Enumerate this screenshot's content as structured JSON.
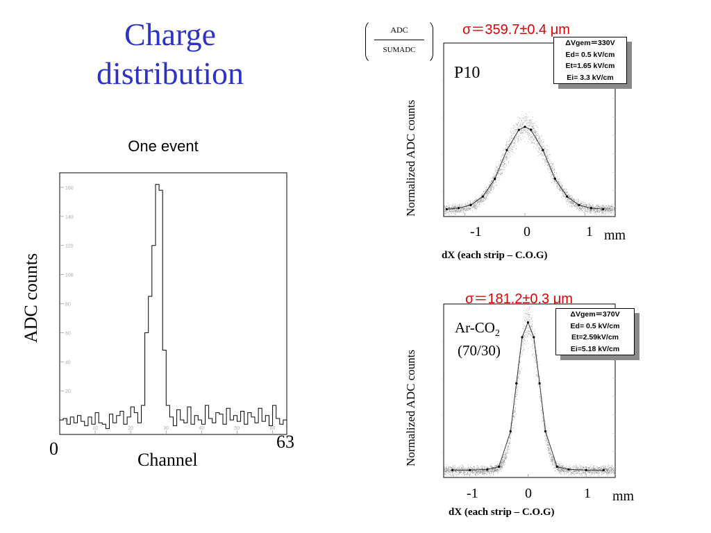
{
  "slide": {
    "title_line1": "Charge",
    "title_line2": "distribution",
    "subtitle": "One event"
  },
  "left_plot": {
    "ylabel": "ADC counts",
    "xlabel": "Channel",
    "x_start": "0",
    "x_end": "63"
  },
  "ratio": {
    "numerator": "ADC",
    "denominator": "SUMADC"
  },
  "top_plot": {
    "sigma": "σ＝359.7±0.4 μm",
    "gas": "P10",
    "ylabel": "Normalized ADC counts",
    "xlabel": "dX (each strip – C.O.G)",
    "unit": "mm",
    "info": [
      "ΔVgem＝330V",
      "Ed= 0.5 kV/cm",
      "Et=1.65 kV/cm",
      "Ei= 3.3 kV/cm"
    ]
  },
  "bottom_plot": {
    "sigma": "σ＝181.2±0.3 μm",
    "gas_main": "Ar-CO",
    "gas_sub": "2",
    "gas_mix": "(70/30)",
    "ylabel": "Normalized ADC counts",
    "xlabel": "dX (each strip – C.O.G)",
    "unit": "mm",
    "info": [
      "ΔVgem＝370V",
      "Ed= 0.5 kV/cm",
      "Et=2.59kV/cm",
      "Ei=5.18 kV/cm"
    ]
  },
  "chart_data": [
    {
      "type": "histogram",
      "title": "One event",
      "xlabel": "Channel",
      "ylabel": "ADC counts",
      "xlim": [
        0,
        64
      ],
      "ylim": [
        -10,
        170
      ],
      "x_ticks": [
        10,
        20,
        30,
        40,
        50,
        60
      ],
      "y_ticks": [
        0,
        20,
        40,
        60,
        80,
        100,
        120,
        140,
        160
      ],
      "x_end_labels": [
        "0",
        "63"
      ],
      "values": [
        0,
        1,
        -3,
        2,
        -2,
        3,
        -1,
        -4,
        2,
        -3,
        5,
        -2,
        -3,
        -6,
        4,
        -2,
        3,
        6,
        -3,
        2,
        9,
        5,
        -2,
        10,
        60,
        85,
        120,
        162,
        158,
        48,
        10,
        2,
        -4,
        7,
        0,
        -2,
        9,
        -3,
        3,
        0,
        -3,
        10,
        1,
        -2,
        5,
        4,
        -3,
        8,
        0,
        3,
        -1,
        6,
        -3,
        5,
        2,
        -2,
        8,
        -1,
        3,
        -4,
        10,
        1,
        -3,
        0
      ],
      "grid": false
    },
    {
      "type": "scatter",
      "title": "σ＝359.7±0.4 μm",
      "xlabel": "dX (each strip – C.O.G)",
      "ylabel": "Normalized ADC counts",
      "unit": "mm",
      "xlim": [
        -1.35,
        1.5
      ],
      "ylim": [
        -0.02,
        0.45
      ],
      "x_tick_labels": [
        "-1",
        "0",
        "1"
      ],
      "profile_x": [
        -1.3,
        -1.1,
        -0.9,
        -0.7,
        -0.5,
        -0.3,
        -0.1,
        0.0,
        0.1,
        0.3,
        0.5,
        0.7,
        0.9,
        1.1,
        1.3
      ],
      "profile_y": [
        0.0,
        0.003,
        0.011,
        0.034,
        0.082,
        0.16,
        0.215,
        0.223,
        0.215,
        0.16,
        0.082,
        0.034,
        0.011,
        0.003,
        0.0
      ],
      "sigma_mm": 0.3597
    },
    {
      "type": "scatter",
      "title": "σ＝181.2±0.3 μm",
      "xlabel": "dX (each strip – C.O.G)",
      "ylabel": "Normalized ADC counts",
      "unit": "mm",
      "xlim": [
        -1.45,
        1.5
      ],
      "ylim": [
        -0.02,
        0.45
      ],
      "x_tick_labels": [
        "-1",
        "0",
        "1"
      ],
      "profile_x": [
        -1.3,
        -1.0,
        -0.7,
        -0.5,
        -0.3,
        -0.2,
        -0.1,
        0.0,
        0.1,
        0.2,
        0.3,
        0.5,
        0.7,
        1.0,
        1.3
      ],
      "profile_y": [
        0.0,
        0.0,
        0.002,
        0.009,
        0.105,
        0.235,
        0.36,
        0.4,
        0.36,
        0.235,
        0.105,
        0.009,
        0.002,
        0.0,
        0.0
      ],
      "sigma_mm": 0.1812
    }
  ]
}
